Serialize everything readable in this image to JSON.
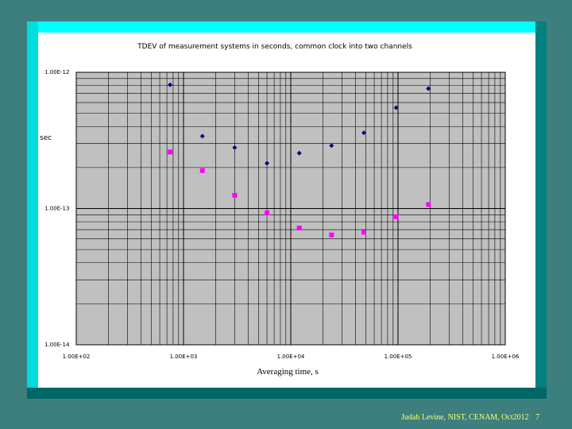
{
  "chart_data": {
    "type": "scatter",
    "title": "TDEV of measurement systems in seconds, common clock into two channels",
    "xlabel": "Averaging time, s",
    "ylabel": "sec",
    "x_scale": "log",
    "y_scale": "log",
    "xlim": [
      100,
      1000000
    ],
    "ylim": [
      1e-14,
      1e-12
    ],
    "x_ticks": [
      {
        "value": 100,
        "label": "1.00E+02"
      },
      {
        "value": 1000,
        "label": "1.00E+03"
      },
      {
        "value": 10000,
        "label": "1.00E+04"
      },
      {
        "value": 100000,
        "label": "1.00E+05"
      },
      {
        "value": 1000000,
        "label": "1.00E+06"
      }
    ],
    "y_ticks": [
      {
        "value": 1e-12,
        "label": "1.00E-12"
      },
      {
        "value": 1e-13,
        "label": "1.00E-13"
      },
      {
        "value": 1e-14,
        "label": "1.00E-14"
      }
    ],
    "grid": true,
    "legend": "none",
    "series": [
      {
        "color": "#000080",
        "marker": "diamond",
        "x": [
          750,
          1500,
          3000,
          6000,
          12000,
          24000,
          48000,
          96000,
          192000
        ],
        "y": [
          8.1e-13,
          3.4e-13,
          2.8e-13,
          2.15e-13,
          2.55e-13,
          2.9e-13,
          3.6e-13,
          5.5e-13,
          7.6e-13
        ]
      },
      {
        "color": "#ff00ff",
        "marker": "square",
        "x": [
          750,
          1500,
          3000,
          6000,
          12000,
          24000,
          48000,
          96000,
          192000
        ],
        "y": [
          2.6e-13,
          1.9e-13,
          1.25e-13,
          9.3e-14,
          7.2e-14,
          6.4e-14,
          6.7e-14,
          8.7e-14,
          1.07e-13
        ]
      }
    ],
    "colors": {
      "plot_bg": "#c0c0c0",
      "grid": "#000000"
    }
  },
  "slide": {
    "footer": "Judah Levine, NIST, CENAM, Oct2012",
    "page_number": "7",
    "colors": {
      "frame_top": "#00ffff",
      "frame_left": "#00dddd",
      "frame_right": "#008080",
      "frame_bottom": "#006666",
      "background": "#3d7f7f",
      "footer_text": "#ffff66"
    }
  }
}
